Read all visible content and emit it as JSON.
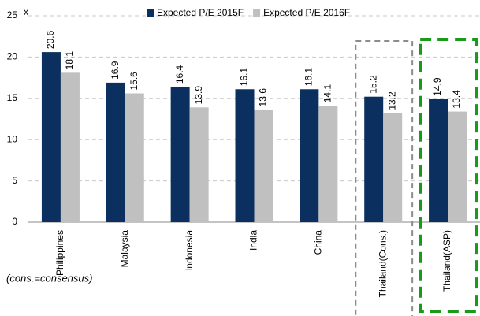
{
  "chart_data": {
    "type": "bar",
    "ylabel": "x",
    "categories": [
      "Philippines",
      "Malaysia",
      "Indonesia",
      "India",
      "China",
      "Thailand(Cons.)",
      "Thailand(ASP)"
    ],
    "series": [
      {
        "name": "Expected P/E 2015F",
        "color": "#0b2f5e",
        "values": [
          20.6,
          16.9,
          16.4,
          16.1,
          16.1,
          15.2,
          14.9
        ]
      },
      {
        "name": "Expected P/E 2016F",
        "color": "#c0c0c0",
        "values": [
          18.1,
          15.6,
          13.9,
          13.6,
          14.1,
          13.2,
          13.4
        ]
      }
    ],
    "ylim": [
      0,
      25
    ],
    "yticks": [
      0,
      5,
      10,
      15,
      20,
      25
    ],
    "grid": true,
    "legend": "top",
    "annotation": "(cons.=consensus)"
  }
}
